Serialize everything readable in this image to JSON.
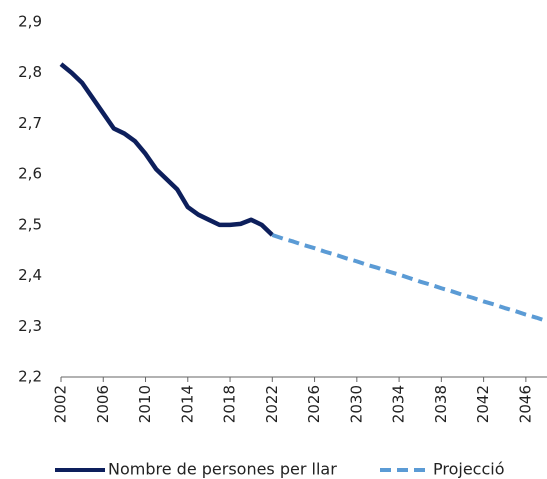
{
  "chart_data": {
    "type": "line",
    "x": [
      2002,
      2003,
      2004,
      2005,
      2006,
      2007,
      2008,
      2009,
      2010,
      2011,
      2012,
      2013,
      2014,
      2015,
      2016,
      2017,
      2018,
      2019,
      2020,
      2021,
      2022,
      2023,
      2024,
      2025,
      2026,
      2027,
      2028,
      2029,
      2030,
      2031,
      2032,
      2033,
      2034,
      2035,
      2036,
      2037,
      2038,
      2039,
      2040,
      2041,
      2042,
      2043,
      2044,
      2045,
      2046,
      2047,
      2048
    ],
    "series": [
      {
        "name": "Nombre de persones per llar",
        "color": "#0d1f5c",
        "dashed": false,
        "values": [
          2.817,
          2.8,
          2.78,
          2.75,
          2.72,
          2.69,
          2.68,
          2.665,
          2.64,
          2.61,
          2.59,
          2.57,
          2.535,
          2.52,
          2.51,
          2.5,
          2.5,
          2.502,
          2.51,
          2.5,
          2.48,
          null,
          null,
          null,
          null,
          null,
          null,
          null,
          null,
          null,
          null,
          null,
          null,
          null,
          null,
          null,
          null,
          null,
          null,
          null,
          null,
          null,
          null,
          null,
          null,
          null,
          null
        ]
      },
      {
        "name": "Projecció",
        "color": "#5b9bd5",
        "dashed": true,
        "values": [
          null,
          null,
          null,
          null,
          null,
          null,
          null,
          null,
          null,
          null,
          null,
          null,
          null,
          null,
          null,
          null,
          null,
          null,
          null,
          null,
          2.48,
          2.473,
          2.467,
          2.46,
          2.454,
          2.447,
          2.441,
          2.434,
          2.428,
          2.421,
          2.415,
          2.408,
          2.402,
          2.395,
          2.388,
          2.382,
          2.375,
          2.369,
          2.362,
          2.356,
          2.349,
          2.343,
          2.336,
          2.33,
          2.323,
          2.317,
          2.31
        ]
      }
    ],
    "xlim": [
      2002,
      2048
    ],
    "xticks": [
      2002,
      2006,
      2010,
      2014,
      2018,
      2022,
      2026,
      2030,
      2034,
      2038,
      2042,
      2046
    ],
    "ylim": [
      2.2,
      2.9
    ],
    "yticks": [
      {
        "value": 2.2,
        "label": "2,2"
      },
      {
        "value": 2.3,
        "label": "2,3"
      },
      {
        "value": 2.4,
        "label": "2,4"
      },
      {
        "value": 2.5,
        "label": "2,5"
      },
      {
        "value": 2.6,
        "label": "2,6"
      },
      {
        "value": 2.7,
        "label": "2,7"
      },
      {
        "value": 2.8,
        "label": "2,8"
      },
      {
        "value": 2.9,
        "label": "2,9"
      }
    ],
    "grid": false
  }
}
